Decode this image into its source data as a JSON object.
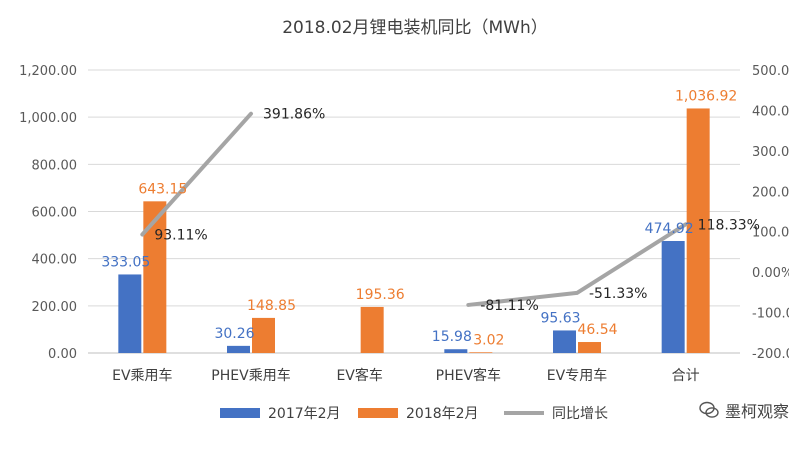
{
  "chart_data": {
    "type": "bar",
    "title": "2018.02月锂电装机同比（MWh）",
    "categories": [
      "EV乘用车",
      "PHEV乘用车",
      "EV客车",
      "PHEV客车",
      "EV专用车",
      "合计"
    ],
    "series": [
      {
        "name": "2017年2月",
        "type": "bar",
        "axis": "left",
        "color": "#4472C4",
        "values": [
          333.05,
          30.26,
          null,
          15.98,
          95.63,
          474.92
        ],
        "labels": [
          "333.05",
          "30.26",
          "",
          "15.98",
          "95.63",
          "474.92"
        ]
      },
      {
        "name": "2018年2月",
        "type": "bar",
        "axis": "left",
        "color": "#ED7D31",
        "values": [
          643.15,
          148.85,
          195.36,
          3.02,
          46.54,
          1036.92
        ],
        "labels": [
          "643.15",
          "148.85",
          "195.36",
          "3.02",
          "46.54",
          "1,036.92"
        ]
      },
      {
        "name": "同比增长",
        "type": "line",
        "axis": "right",
        "color": "#A5A5A5",
        "values": [
          93.11,
          391.86,
          null,
          -81.11,
          -51.33,
          118.33
        ],
        "labels": [
          "93.11%",
          "391.86%",
          "",
          "-81.11%",
          "-51.33%",
          "118.33%"
        ]
      }
    ],
    "y_left": {
      "min": 0,
      "max": 1200,
      "step": 200,
      "ticks": [
        "0.00",
        "200.00",
        "400.00",
        "600.00",
        "800.00",
        "1,000.00",
        "1,200.00"
      ]
    },
    "y_right": {
      "min": -200,
      "max": 500,
      "step": 100,
      "ticks": [
        "-200.00%",
        "-100.00%",
        "0.00%",
        "100.00%",
        "200.00%",
        "300.00%",
        "400.00%",
        "500.00%"
      ]
    },
    "grid": true,
    "legend_position": "bottom"
  },
  "watermark": {
    "text": "墨柯观察"
  }
}
